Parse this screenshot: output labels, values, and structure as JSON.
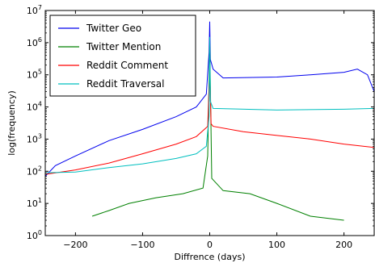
{
  "chart_data": {
    "type": "line",
    "title": "",
    "xlabel": "Diffrence (days)",
    "ylabel": "log(frequency)",
    "xlim": [
      -245,
      245
    ],
    "ylim": [
      1,
      10000000
    ],
    "yscale": "log",
    "grid": false,
    "legend_position": "top-left",
    "x_ticks": [
      -200,
      -100,
      0,
      100,
      200
    ],
    "x_tick_labels": [
      "−200",
      "−100",
      "0",
      "100",
      "200"
    ],
    "y_ticks": [
      1,
      10,
      100,
      1000,
      10000,
      100000,
      1000000,
      10000000
    ],
    "y_tick_labels": [
      {
        "base": "10",
        "exp": "0"
      },
      {
        "base": "10",
        "exp": "1"
      },
      {
        "base": "10",
        "exp": "2"
      },
      {
        "base": "10",
        "exp": "3"
      },
      {
        "base": "10",
        "exp": "4"
      },
      {
        "base": "10",
        "exp": "5"
      },
      {
        "base": "10",
        "exp": "6"
      },
      {
        "base": "10",
        "exp": "7"
      }
    ],
    "series": [
      {
        "name": "Twitter Geo",
        "color": "#0000ee",
        "points": [
          [
            -245,
            70
          ],
          [
            -230,
            150
          ],
          [
            -200,
            300
          ],
          [
            -150,
            900
          ],
          [
            -100,
            2000
          ],
          [
            -50,
            5000
          ],
          [
            -20,
            10000
          ],
          [
            -5,
            25000
          ],
          [
            -1,
            500000
          ],
          [
            0,
            4500000
          ],
          [
            1,
            300000
          ],
          [
            5,
            150000
          ],
          [
            20,
            80000
          ],
          [
            100,
            85000
          ],
          [
            150,
            100000
          ],
          [
            200,
            120000
          ],
          [
            220,
            150000
          ],
          [
            235,
            100000
          ],
          [
            245,
            30000
          ]
        ]
      },
      {
        "name": "Twitter Mention",
        "color": "#008000",
        "points": [
          [
            -175,
            4
          ],
          [
            -150,
            6
          ],
          [
            -120,
            10
          ],
          [
            -80,
            15
          ],
          [
            -40,
            20
          ],
          [
            -10,
            30
          ],
          [
            -3,
            300
          ],
          [
            0,
            1000000
          ],
          [
            3,
            60
          ],
          [
            20,
            25
          ],
          [
            60,
            20
          ],
          [
            100,
            10
          ],
          [
            150,
            4
          ],
          [
            200,
            3
          ]
        ]
      },
      {
        "name": "Reddit Comment",
        "color": "#ff0000",
        "points": [
          [
            -245,
            80
          ],
          [
            -200,
            110
          ],
          [
            -150,
            180
          ],
          [
            -100,
            350
          ],
          [
            -50,
            700
          ],
          [
            -20,
            1200
          ],
          [
            -3,
            2500
          ],
          [
            0,
            150000
          ],
          [
            2,
            3000
          ],
          [
            5,
            2500
          ],
          [
            50,
            1700
          ],
          [
            100,
            1300
          ],
          [
            150,
            1000
          ],
          [
            200,
            700
          ],
          [
            245,
            550
          ]
        ]
      },
      {
        "name": "Reddit Traversal",
        "color": "#00bfbf",
        "points": [
          [
            -245,
            90
          ],
          [
            -200,
            95
          ],
          [
            -150,
            130
          ],
          [
            -100,
            170
          ],
          [
            -50,
            250
          ],
          [
            -20,
            350
          ],
          [
            -5,
            600
          ],
          [
            -1,
            5000
          ],
          [
            0,
            1500000
          ],
          [
            1,
            15000
          ],
          [
            5,
            9000
          ],
          [
            100,
            8000
          ],
          [
            200,
            8500
          ],
          [
            245,
            9000
          ]
        ]
      }
    ]
  }
}
